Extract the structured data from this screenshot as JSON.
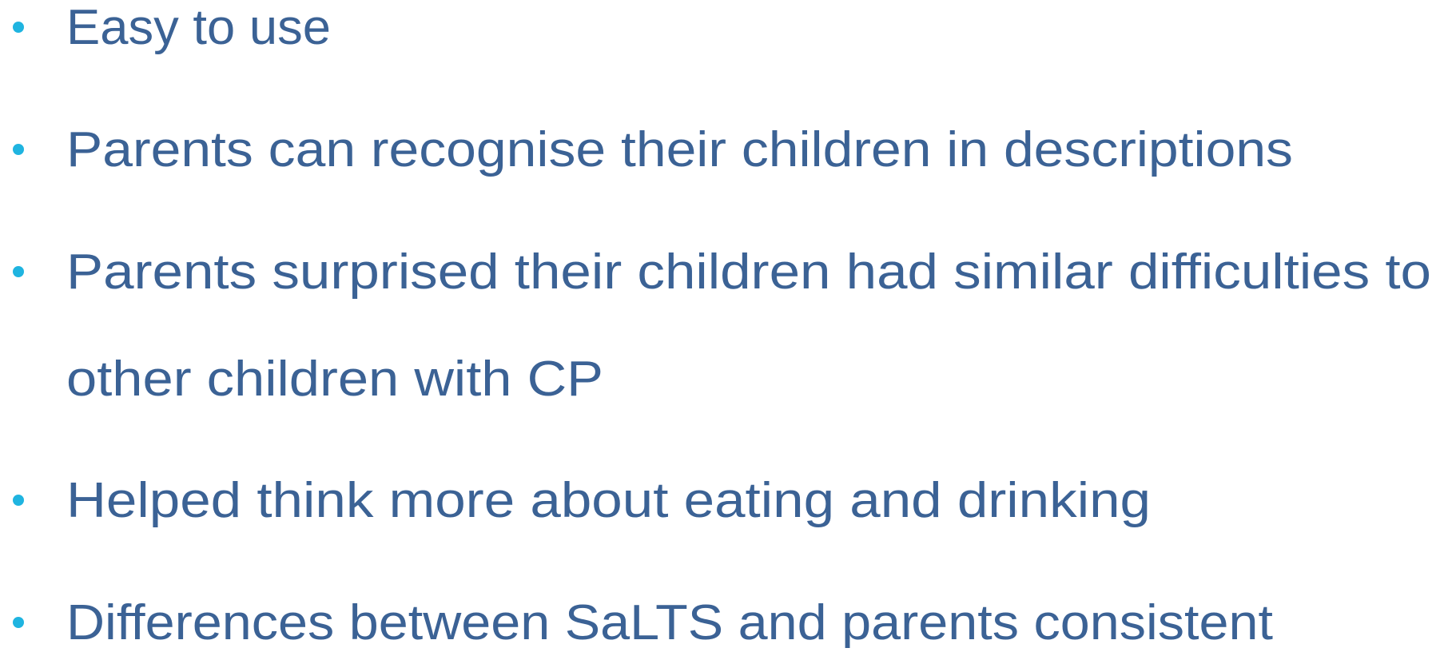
{
  "bullets": [
    {
      "lines": [
        "Easy to use"
      ]
    },
    {
      "lines": [
        "Parents can recognise their children in descriptions"
      ]
    },
    {
      "lines": [
        "Parents surprised their children had similar difficulties to",
        "other children with CP"
      ]
    },
    {
      "lines": [
        "Helped think more about eating and drinking"
      ]
    },
    {
      "lines": [
        "Differences between SaLTS and parents consistent"
      ]
    }
  ]
}
